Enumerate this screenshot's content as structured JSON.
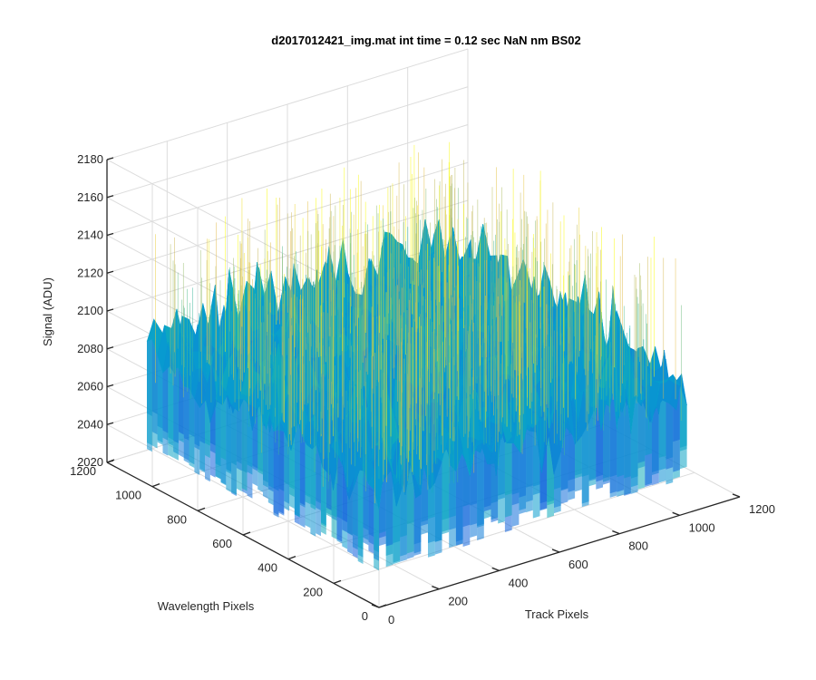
{
  "chart_data": {
    "type": "surface",
    "title": "d2017012421_img.mat int time = 0.12 sec  NaN nm BS02",
    "xlabel": "Track Pixels",
    "ylabel": "Wavelength Pixels",
    "zlabel": "Signal (ADU)",
    "xlim": [
      0,
      1200
    ],
    "ylim": [
      0,
      1200
    ],
    "zlim": [
      2020,
      2180
    ],
    "x_ticks": [
      "0",
      "200",
      "400",
      "600",
      "800",
      "1000",
      "1200"
    ],
    "y_ticks": [
      "0",
      "200",
      "400",
      "600",
      "800",
      "1000",
      "1200"
    ],
    "z_ticks": [
      "2020",
      "2040",
      "2060",
      "2080",
      "2100",
      "2120",
      "2140",
      "2160",
      "2180"
    ],
    "grid": true,
    "colormap": "parula",
    "data_extent": {
      "x": [
        0,
        1024
      ],
      "y": [
        0,
        1024
      ]
    },
    "signal_mean": 2085,
    "signal_min": 2030,
    "signal_max": 2160,
    "colors": {
      "low": "#0a6fdc",
      "mid": "#1fb5b0",
      "high": "#e8c53a"
    }
  }
}
